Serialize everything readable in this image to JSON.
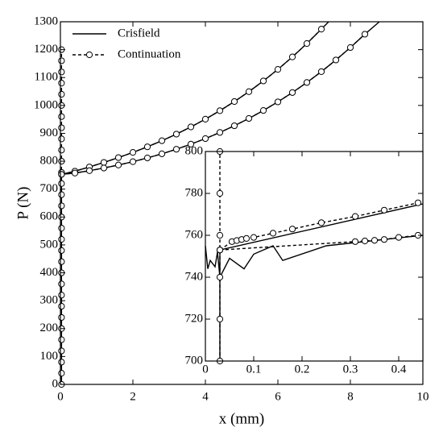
{
  "chart_data": [
    {
      "type": "line",
      "xlabel": "x (mm)",
      "ylabel": "P (N)",
      "legend": "upper left",
      "xlim": [
        0,
        10
      ],
      "ylim": [
        0,
        1300
      ],
      "xticks": [
        0,
        2,
        4,
        6,
        8,
        10
      ],
      "yticks": [
        0,
        100,
        200,
        300,
        400,
        500,
        600,
        700,
        800,
        900,
        1000,
        1100,
        1200,
        1300
      ],
      "series": [
        {
          "name": "Crisfield",
          "color": "#000000",
          "linestyle": "solid",
          "marker": "none",
          "x": [
            0.03,
            0.03,
            0.4,
            0.8,
            1.2,
            1.6,
            2.0,
            2.4,
            2.8,
            3.2,
            3.6,
            4.0,
            4.4,
            4.8,
            5.2,
            5.6,
            6.0,
            6.4,
            6.8,
            7.2,
            7.4,
            null,
            0.03,
            0.4,
            0.8,
            1.2,
            1.6,
            2.0,
            2.4,
            2.8,
            3.2,
            3.6,
            4.0,
            4.4,
            4.8,
            5.2,
            5.6,
            6.0,
            6.4,
            6.8,
            7.2,
            7.6,
            8.0,
            8.4,
            8.8
          ],
          "values": [
            0,
            753,
            764.3,
            779.5,
            795.7,
            813.0,
            831.6,
            851.7,
            873.6,
            897.2,
            922.9,
            950.8,
            981.1,
            1013.9,
            1049.4,
            1087.8,
            1129.2,
            1173.9,
            1222.0,
            1273.6,
            1300,
            null,
            753,
            757.6,
            766.2,
            775.7,
            786.4,
            798.4,
            811.8,
            826.6,
            843.0,
            861.2,
            881.2,
            903.2,
            927.2,
            953.4,
            981.9,
            1012.8,
            1046.2,
            1082.3,
            1121.2,
            1162.9,
            1207.6,
            1255.4,
            1300
          ]
        },
        {
          "name": "Continuation",
          "color": "#000000",
          "linestyle": "dashed",
          "marker": "circle",
          "x": [
            0.03,
            0.03,
            0.03,
            0.03,
            0.03,
            0.03,
            0.03,
            0.03,
            0.03,
            0.03,
            0.03,
            0.03,
            0.03,
            0.03,
            0.03,
            0.03,
            0.03,
            0.03,
            0.03,
            0.03,
            0.03,
            0.03,
            0.03,
            0.03,
            0.03,
            0.03,
            0.03,
            0.03,
            0.03,
            0.03,
            0.03,
            null,
            0.03,
            0.4,
            0.8,
            1.2,
            1.6,
            2.0,
            2.4,
            2.8,
            3.2,
            3.6,
            4.0,
            4.4,
            4.8,
            5.2,
            5.6,
            6.0,
            6.4,
            6.8,
            7.2,
            null,
            0.03,
            0.4,
            0.8,
            1.2,
            1.6,
            2.0,
            2.4,
            2.8,
            3.2,
            3.6,
            4.0,
            4.4,
            4.8,
            5.2,
            5.6,
            6.0,
            6.4,
            6.8,
            7.2,
            7.6,
            8.0,
            8.4
          ],
          "values": [
            0,
            40,
            80,
            120,
            160,
            200,
            240,
            280,
            320,
            360,
            400,
            440,
            480,
            520,
            560,
            600,
            640,
            680,
            720,
            760,
            800,
            840,
            880,
            920,
            960,
            1000,
            1040,
            1080,
            1120,
            1160,
            1200,
            null,
            753,
            764.3,
            779.5,
            795.7,
            813.0,
            831.6,
            851.7,
            873.6,
            897.2,
            922.9,
            950.8,
            981.1,
            1013.9,
            1049.4,
            1087.8,
            1129.2,
            1173.9,
            1222.0,
            1273.6,
            null,
            753,
            757.6,
            766.2,
            775.7,
            786.4,
            798.4,
            811.8,
            826.6,
            843.0,
            861.2,
            881.2,
            903.2,
            927.2,
            953.4,
            981.9,
            1012.8,
            1046.2,
            1082.3,
            1121.2,
            1162.9,
            1207.6,
            1255.4
          ]
        }
      ]
    },
    {
      "type": "line",
      "xlim": [
        0,
        0.45
      ],
      "ylim": [
        700,
        800
      ],
      "xticks": [
        0,
        0.1,
        0.2,
        0.3,
        0.4
      ],
      "yticks": [
        700,
        720,
        740,
        760,
        780,
        800
      ],
      "series": [
        {
          "color": "#000000",
          "linestyle": "solid",
          "marker": "none",
          "x": [
            0.03,
            0.03,
            0.45,
            null,
            0.0,
            0.005,
            0.01,
            0.02,
            0.025,
            0.03,
            0.05,
            0.08,
            0.1,
            0.14,
            0.16,
            0.25,
            0.45
          ],
          "values": [
            700,
            753,
            775,
            null,
            755,
            744,
            748,
            745,
            752,
            740,
            749,
            744,
            751,
            755,
            748,
            755,
            760
          ]
        },
        {
          "color": "#000000",
          "linestyle": "dashed",
          "marker": "circle",
          "x": [
            0.03,
            0.03,
            0.03,
            0.03,
            0.03,
            0.03,
            null,
            0.03,
            0.055,
            0.065,
            0.075,
            0.085,
            0.1,
            0.14,
            0.18,
            0.24,
            0.31,
            0.37,
            0.44,
            null,
            0.03,
            0.31,
            0.33,
            0.35,
            0.37,
            0.4,
            0.44
          ],
          "values": [
            700,
            720,
            740,
            760,
            780,
            800,
            null,
            753,
            757,
            757.5,
            758,
            758.5,
            759,
            761,
            763,
            766,
            769,
            772,
            775.5,
            null,
            753,
            757,
            757.3,
            757.6,
            758,
            759,
            760
          ]
        }
      ]
    }
  ]
}
